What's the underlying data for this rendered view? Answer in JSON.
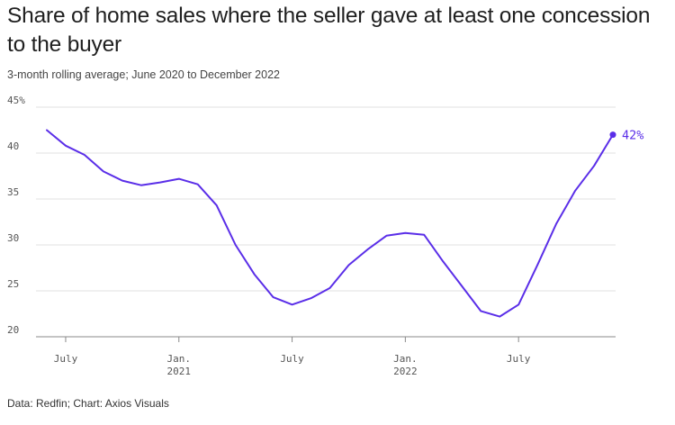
{
  "colors": {
    "line": "#5a2ee8",
    "grid": "#e2e2e2",
    "axis": "#888888"
  },
  "chart_data": {
    "type": "line",
    "title": "Share of home sales where the seller gave at least one concession to the buyer",
    "subtitle": "3-month rolling average; June 2020 to December 2022",
    "source": "Data: Redfin; Chart: Axios Visuals",
    "x": [
      "2020-06",
      "2020-07",
      "2020-08",
      "2020-09",
      "2020-10",
      "2020-11",
      "2020-12",
      "2021-01",
      "2021-02",
      "2021-03",
      "2021-04",
      "2021-05",
      "2021-06",
      "2021-07",
      "2021-08",
      "2021-09",
      "2021-10",
      "2021-11",
      "2021-12",
      "2022-01",
      "2022-02",
      "2022-03",
      "2022-04",
      "2022-05",
      "2022-06",
      "2022-07",
      "2022-08",
      "2022-09",
      "2022-10",
      "2022-11",
      "2022-12"
    ],
    "series": [
      {
        "values": [
          42.5,
          40.8,
          39.8,
          38.0,
          37.0,
          36.5,
          36.8,
          37.2,
          36.6,
          34.3,
          30.0,
          26.8,
          24.3,
          23.5,
          24.2,
          25.3,
          27.8,
          29.5,
          31.0,
          31.3,
          31.1,
          28.2,
          25.5,
          22.8,
          22.2,
          23.5,
          27.8,
          32.3,
          35.9,
          38.6,
          42.0
        ]
      }
    ],
    "ylim": [
      20,
      45
    ],
    "yticks": [
      "45%",
      "40",
      "35",
      "30",
      "25",
      "20"
    ],
    "ytick_values": [
      45,
      40,
      35,
      30,
      25,
      20
    ],
    "xticks": [
      {
        "at": "2020-07",
        "label": "July",
        "sublabel": ""
      },
      {
        "at": "2021-01",
        "label": "Jan.",
        "sublabel": "2021"
      },
      {
        "at": "2021-07",
        "label": "July",
        "sublabel": ""
      },
      {
        "at": "2022-01",
        "label": "Jan.",
        "sublabel": "2022"
      },
      {
        "at": "2022-07",
        "label": "July",
        "sublabel": ""
      }
    ],
    "end_label": "42%",
    "grid": true
  }
}
